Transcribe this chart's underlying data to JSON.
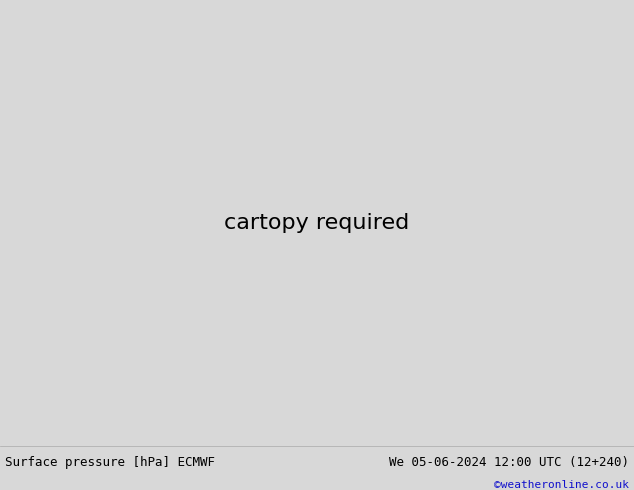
{
  "title_left": "Surface pressure [hPa] ECMWF",
  "title_right": "We 05-06-2024 12:00 UTC (12+240)",
  "copyright": "©weatheronline.co.uk",
  "bg_color": "#d8d8d8",
  "land_color": "#cceeaa",
  "ocean_color": "#d8d8d8",
  "border_color": "#888888",
  "bottom_bar_color": "#f0f0f0",
  "lon_min": -110,
  "lon_max": -10,
  "lat_min": -60,
  "lat_max": 15,
  "figsize": [
    6.34,
    4.9
  ],
  "dpi": 100
}
